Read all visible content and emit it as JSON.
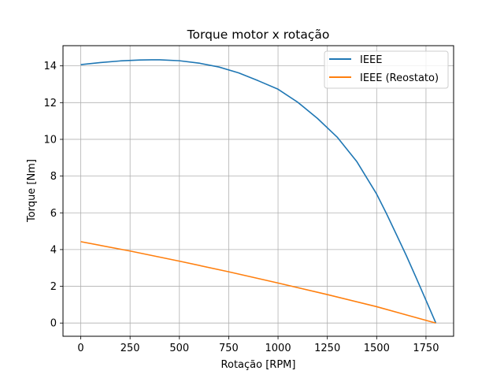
{
  "chart_data": {
    "type": "line",
    "title": "Torque motor x rotação",
    "xlabel": "Rotação [RPM]",
    "ylabel": "Torque [Nm]",
    "xlim": [
      -90,
      1890
    ],
    "ylim": [
      -0.72,
      15.1
    ],
    "xticks": [
      0,
      250,
      500,
      750,
      1000,
      1250,
      1500,
      1750
    ],
    "yticks": [
      0,
      2,
      4,
      6,
      8,
      10,
      12,
      14
    ],
    "grid": true,
    "legend_position": "top-right",
    "series": [
      {
        "name": "IEEE",
        "color": "#1f77b4",
        "x": [
          0,
          100,
          200,
          300,
          360,
          400,
          500,
          600,
          700,
          800,
          900,
          1000,
          1100,
          1200,
          1300,
          1400,
          1500,
          1550,
          1600,
          1650,
          1700,
          1750,
          1800
        ],
        "y": [
          14.07,
          14.18,
          14.27,
          14.32,
          14.33,
          14.33,
          14.28,
          14.15,
          13.94,
          13.62,
          13.19,
          12.73,
          12.02,
          11.14,
          10.12,
          8.78,
          7.02,
          5.95,
          4.82,
          3.68,
          2.47,
          1.24,
          0.0
        ]
      },
      {
        "name": "IEEE (Reostato)",
        "color": "#ff7f0e",
        "x": [
          0,
          250,
          500,
          750,
          1000,
          1250,
          1500,
          1800
        ],
        "y": [
          4.43,
          3.92,
          3.37,
          2.79,
          2.18,
          1.55,
          0.89,
          0.0
        ]
      }
    ]
  }
}
